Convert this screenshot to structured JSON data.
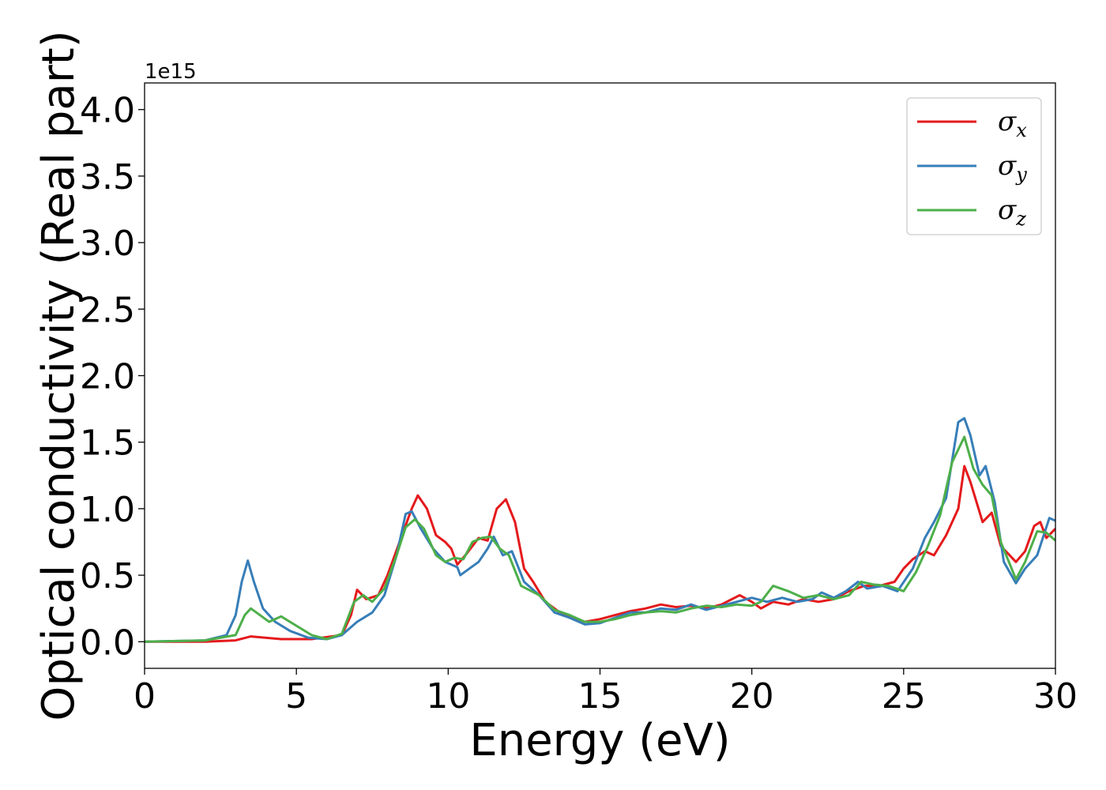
{
  "chart_data": {
    "type": "line",
    "title": "",
    "xlabel": "Energy (eV)",
    "ylabel": "Optical conductivity (Real part)",
    "y_offset_text": "1e15",
    "xlim": [
      0,
      30
    ],
    "ylim": [
      -0.2,
      4.2
    ],
    "x_ticks": [
      0,
      5,
      10,
      15,
      20,
      25,
      30
    ],
    "x_tick_labels": [
      "0",
      "5",
      "10",
      "15",
      "20",
      "25",
      "30"
    ],
    "y_ticks": [
      0.0,
      0.5,
      1.0,
      1.5,
      2.0,
      2.5,
      3.0,
      3.5,
      4.0
    ],
    "y_tick_labels": [
      "0.0",
      "0.5",
      "1.0",
      "1.5",
      "2.0",
      "2.5",
      "3.0",
      "3.5",
      "4.0"
    ],
    "grid": false,
    "legend_position": "top-right",
    "series": [
      {
        "name": "σx",
        "base": "σ",
        "sub": "x",
        "color": "#e41a1c",
        "points": [
          [
            0,
            0
          ],
          [
            2,
            0
          ],
          [
            3,
            0.01
          ],
          [
            3.5,
            0.04
          ],
          [
            4.5,
            0.02
          ],
          [
            5.5,
            0.02
          ],
          [
            6.5,
            0.05
          ],
          [
            6.8,
            0.2
          ],
          [
            7.0,
            0.39
          ],
          [
            7.3,
            0.32
          ],
          [
            7.7,
            0.35
          ],
          [
            8.0,
            0.5
          ],
          [
            8.4,
            0.75
          ],
          [
            8.8,
            1.0
          ],
          [
            9.0,
            1.1
          ],
          [
            9.3,
            1.0
          ],
          [
            9.6,
            0.8
          ],
          [
            9.9,
            0.75
          ],
          [
            10.1,
            0.7
          ],
          [
            10.3,
            0.58
          ],
          [
            10.6,
            0.66
          ],
          [
            11.0,
            0.78
          ],
          [
            11.3,
            0.76
          ],
          [
            11.6,
            1.0
          ],
          [
            11.9,
            1.07
          ],
          [
            12.2,
            0.9
          ],
          [
            12.5,
            0.55
          ],
          [
            12.8,
            0.45
          ],
          [
            13.2,
            0.3
          ],
          [
            13.8,
            0.2
          ],
          [
            14.5,
            0.15
          ],
          [
            15.0,
            0.17
          ],
          [
            15.5,
            0.2
          ],
          [
            16.0,
            0.23
          ],
          [
            16.5,
            0.25
          ],
          [
            17.0,
            0.28
          ],
          [
            17.5,
            0.26
          ],
          [
            18.0,
            0.27
          ],
          [
            18.5,
            0.25
          ],
          [
            19.0,
            0.28
          ],
          [
            19.6,
            0.35
          ],
          [
            20.0,
            0.3
          ],
          [
            20.3,
            0.25
          ],
          [
            20.7,
            0.3
          ],
          [
            21.2,
            0.28
          ],
          [
            21.7,
            0.32
          ],
          [
            22.2,
            0.3
          ],
          [
            22.7,
            0.32
          ],
          [
            23.2,
            0.38
          ],
          [
            23.7,
            0.42
          ],
          [
            24.2,
            0.42
          ],
          [
            24.7,
            0.45
          ],
          [
            25.0,
            0.55
          ],
          [
            25.3,
            0.62
          ],
          [
            25.7,
            0.68
          ],
          [
            26.0,
            0.65
          ],
          [
            26.4,
            0.8
          ],
          [
            26.8,
            1.0
          ],
          [
            27.0,
            1.32
          ],
          [
            27.2,
            1.2
          ],
          [
            27.6,
            0.9
          ],
          [
            27.9,
            0.97
          ],
          [
            28.2,
            0.72
          ],
          [
            28.7,
            0.6
          ],
          [
            29.0,
            0.68
          ],
          [
            29.3,
            0.87
          ],
          [
            29.5,
            0.9
          ],
          [
            29.7,
            0.78
          ],
          [
            30.0,
            0.85
          ]
        ]
      },
      {
        "name": "σy",
        "base": "σ",
        "sub": "y",
        "color": "#377eb8",
        "points": [
          [
            0,
            0
          ],
          [
            2,
            0.01
          ],
          [
            2.7,
            0.05
          ],
          [
            3.0,
            0.2
          ],
          [
            3.2,
            0.45
          ],
          [
            3.4,
            0.61
          ],
          [
            3.6,
            0.45
          ],
          [
            3.9,
            0.25
          ],
          [
            4.3,
            0.15
          ],
          [
            4.8,
            0.08
          ],
          [
            5.4,
            0.03
          ],
          [
            6.0,
            0.02
          ],
          [
            6.5,
            0.05
          ],
          [
            7.0,
            0.15
          ],
          [
            7.5,
            0.22
          ],
          [
            7.9,
            0.35
          ],
          [
            8.3,
            0.65
          ],
          [
            8.6,
            0.96
          ],
          [
            8.8,
            0.98
          ],
          [
            9.1,
            0.85
          ],
          [
            9.5,
            0.7
          ],
          [
            9.9,
            0.6
          ],
          [
            10.3,
            0.56
          ],
          [
            10.4,
            0.5
          ],
          [
            10.7,
            0.55
          ],
          [
            11.0,
            0.6
          ],
          [
            11.3,
            0.7
          ],
          [
            11.5,
            0.79
          ],
          [
            11.8,
            0.65
          ],
          [
            12.1,
            0.68
          ],
          [
            12.5,
            0.45
          ],
          [
            13.0,
            0.35
          ],
          [
            13.5,
            0.22
          ],
          [
            14.0,
            0.18
          ],
          [
            14.5,
            0.13
          ],
          [
            15.0,
            0.14
          ],
          [
            15.5,
            0.18
          ],
          [
            16.0,
            0.22
          ],
          [
            16.5,
            0.22
          ],
          [
            17.0,
            0.25
          ],
          [
            17.5,
            0.24
          ],
          [
            18.0,
            0.28
          ],
          [
            18.5,
            0.24
          ],
          [
            19.0,
            0.27
          ],
          [
            19.5,
            0.3
          ],
          [
            20.0,
            0.33
          ],
          [
            20.5,
            0.3
          ],
          [
            21.0,
            0.33
          ],
          [
            21.5,
            0.3
          ],
          [
            22.0,
            0.32
          ],
          [
            22.3,
            0.37
          ],
          [
            22.7,
            0.33
          ],
          [
            23.1,
            0.38
          ],
          [
            23.5,
            0.45
          ],
          [
            23.8,
            0.4
          ],
          [
            24.3,
            0.42
          ],
          [
            24.8,
            0.38
          ],
          [
            25.3,
            0.55
          ],
          [
            25.7,
            0.78
          ],
          [
            26.0,
            0.9
          ],
          [
            26.4,
            1.08
          ],
          [
            26.8,
            1.65
          ],
          [
            27.0,
            1.68
          ],
          [
            27.2,
            1.55
          ],
          [
            27.5,
            1.25
          ],
          [
            27.7,
            1.32
          ],
          [
            28.0,
            1.05
          ],
          [
            28.3,
            0.6
          ],
          [
            28.7,
            0.44
          ],
          [
            29.0,
            0.55
          ],
          [
            29.4,
            0.65
          ],
          [
            29.8,
            0.93
          ],
          [
            30.0,
            0.91
          ]
        ]
      },
      {
        "name": "σz",
        "base": "σ",
        "sub": "z",
        "color": "#4daf4a",
        "points": [
          [
            0,
            0
          ],
          [
            2,
            0.01
          ],
          [
            3.0,
            0.05
          ],
          [
            3.3,
            0.2
          ],
          [
            3.5,
            0.25
          ],
          [
            3.8,
            0.2
          ],
          [
            4.1,
            0.15
          ],
          [
            4.5,
            0.19
          ],
          [
            5.0,
            0.12
          ],
          [
            5.5,
            0.05
          ],
          [
            6.0,
            0.02
          ],
          [
            6.5,
            0.06
          ],
          [
            6.9,
            0.3
          ],
          [
            7.2,
            0.35
          ],
          [
            7.5,
            0.3
          ],
          [
            7.9,
            0.4
          ],
          [
            8.3,
            0.65
          ],
          [
            8.6,
            0.86
          ],
          [
            8.9,
            0.92
          ],
          [
            9.2,
            0.85
          ],
          [
            9.6,
            0.65
          ],
          [
            9.9,
            0.6
          ],
          [
            10.2,
            0.63
          ],
          [
            10.5,
            0.62
          ],
          [
            10.8,
            0.75
          ],
          [
            11.1,
            0.78
          ],
          [
            11.4,
            0.79
          ],
          [
            11.7,
            0.7
          ],
          [
            12.0,
            0.65
          ],
          [
            12.4,
            0.42
          ],
          [
            13.0,
            0.35
          ],
          [
            13.5,
            0.24
          ],
          [
            14.0,
            0.2
          ],
          [
            14.5,
            0.15
          ],
          [
            15.0,
            0.15
          ],
          [
            15.5,
            0.17
          ],
          [
            16.0,
            0.2
          ],
          [
            16.5,
            0.22
          ],
          [
            17.0,
            0.23
          ],
          [
            17.5,
            0.22
          ],
          [
            18.0,
            0.25
          ],
          [
            18.5,
            0.27
          ],
          [
            19.0,
            0.26
          ],
          [
            19.5,
            0.28
          ],
          [
            20.0,
            0.27
          ],
          [
            20.3,
            0.3
          ],
          [
            20.7,
            0.42
          ],
          [
            21.2,
            0.38
          ],
          [
            21.7,
            0.33
          ],
          [
            22.2,
            0.35
          ],
          [
            22.7,
            0.32
          ],
          [
            23.2,
            0.35
          ],
          [
            23.6,
            0.45
          ],
          [
            24.0,
            0.43
          ],
          [
            24.5,
            0.42
          ],
          [
            25.0,
            0.38
          ],
          [
            25.4,
            0.52
          ],
          [
            25.8,
            0.72
          ],
          [
            26.2,
            0.95
          ],
          [
            26.6,
            1.35
          ],
          [
            27.0,
            1.54
          ],
          [
            27.3,
            1.3
          ],
          [
            27.6,
            1.18
          ],
          [
            27.9,
            1.1
          ],
          [
            28.2,
            0.75
          ],
          [
            28.7,
            0.47
          ],
          [
            29.0,
            0.6
          ],
          [
            29.4,
            0.83
          ],
          [
            29.7,
            0.82
          ],
          [
            30.0,
            0.76
          ]
        ]
      }
    ]
  }
}
